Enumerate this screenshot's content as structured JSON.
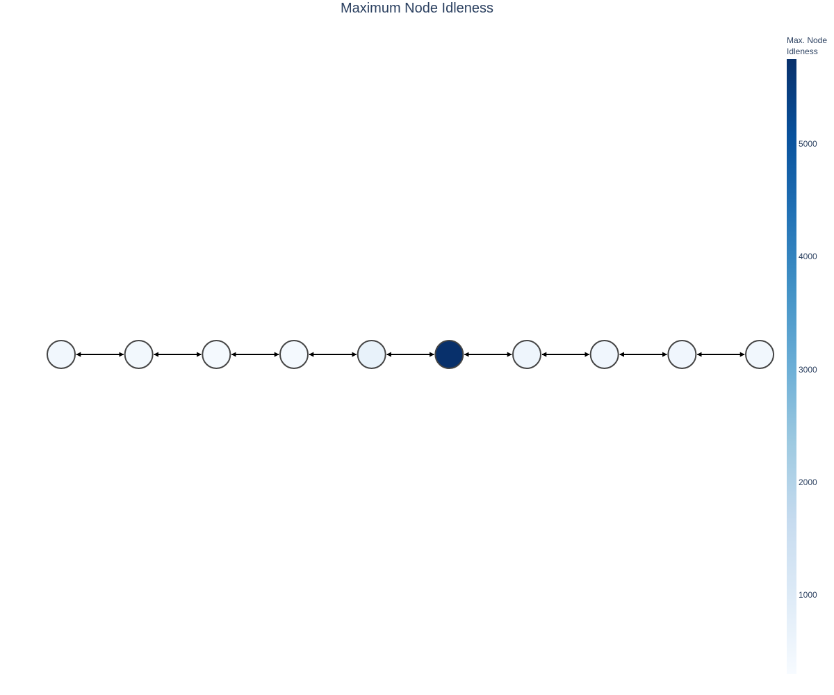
{
  "title": "Maximum Node Idleness",
  "chart_data": {
    "type": "graph",
    "title": "Maximum Node Idleness",
    "colorscale": "Blues",
    "edges": "bidirectional, between consecutive nodes",
    "colorbar": {
      "title": "Max. Node Idleness",
      "title_lines": [
        "Max. Node",
        "Idleness"
      ],
      "range": [
        300,
        5750
      ],
      "ticks": [
        1000,
        2000,
        3000,
        4000,
        5000
      ],
      "tick_labels": [
        "1000",
        "2000",
        "3000",
        "4000",
        "5000"
      ]
    },
    "nodes": [
      {
        "id": 0,
        "value": 450
      },
      {
        "id": 1,
        "value": 430
      },
      {
        "id": 2,
        "value": 390
      },
      {
        "id": 3,
        "value": 380
      },
      {
        "id": 4,
        "value": 700
      },
      {
        "id": 5,
        "value": 5750
      },
      {
        "id": 6,
        "value": 550
      },
      {
        "id": 7,
        "value": 500
      },
      {
        "id": 8,
        "value": 500
      },
      {
        "id": 9,
        "value": 450
      }
    ]
  }
}
